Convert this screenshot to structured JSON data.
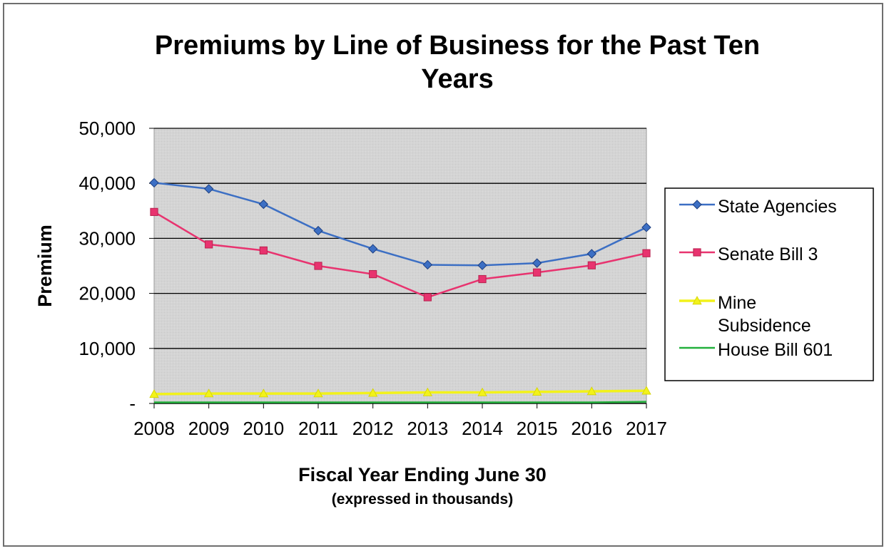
{
  "chart_data": {
    "type": "line",
    "title": "Premiums by Line of Business for the Past Ten Years",
    "title_lines": [
      "Premiums by Line of Business for the Past Ten",
      "Years"
    ],
    "xlabel": "Fiscal Year Ending June 30",
    "xlabel_sub": "(expressed in thousands)",
    "ylabel": "Premium",
    "ylim": [
      0,
      50000
    ],
    "yticks": [
      0,
      10000,
      20000,
      30000,
      40000,
      50000
    ],
    "ytick_labels": [
      "-",
      "10,000",
      "20,000",
      "30,000",
      "40,000",
      "50,000"
    ],
    "grid": "horizontal",
    "legend": "right",
    "x": [
      "2008",
      "2009",
      "2010",
      "2011",
      "2012",
      "2013",
      "2014",
      "2015",
      "2016",
      "2017"
    ],
    "series": [
      {
        "name": "State Agencies",
        "name_lines": [
          "State Agencies"
        ],
        "color": "#3c6fc4",
        "marker": "diamond",
        "values": [
          40100,
          39000,
          36200,
          31400,
          28100,
          25200,
          25100,
          25500,
          27200,
          32000
        ]
      },
      {
        "name": "Senate Bill 3",
        "name_lines": [
          "Senate Bill 3"
        ],
        "color": "#e8336f",
        "marker": "square",
        "values": [
          34800,
          28900,
          27800,
          25000,
          23500,
          19300,
          22600,
          23800,
          25100,
          27300
        ]
      },
      {
        "name": "Mine Subsidence",
        "name_lines": [
          "Mine",
          "Subsidence"
        ],
        "color": "#f2f21a",
        "marker": "triangle",
        "values": [
          1700,
          1800,
          1800,
          1800,
          1900,
          2000,
          2000,
          2100,
          2200,
          2300
        ]
      },
      {
        "name": "House Bill 601",
        "name_lines": [
          "House Bill 601"
        ],
        "color": "#22b03c",
        "marker": "none",
        "values": [
          200,
          200,
          200,
          200,
          200,
          200,
          200,
          200,
          200,
          300
        ]
      }
    ]
  }
}
